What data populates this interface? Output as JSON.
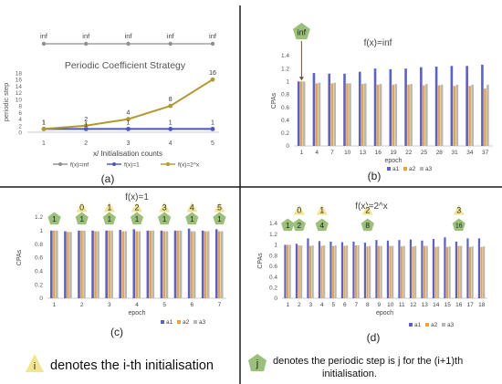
{
  "colors": {
    "inf": "#8f8f8f",
    "one": "#4a55c8",
    "pow": "#b19a2b",
    "a1": "#5b5fd4",
    "a2": "#e8a53a",
    "a3": "#b7b7b7",
    "hex": "#9ac07a",
    "tri": "#f2e58d",
    "axis": "#888888",
    "divider": "#1a1a1a"
  },
  "panels": {
    "a": {
      "letter": "(a)"
    },
    "b": {
      "letter": "(b)"
    },
    "c": {
      "letter": "(c)"
    },
    "d": {
      "letter": "(d)"
    }
  },
  "legend_bottom": {
    "tri_symbol": "i",
    "tri_text": "denotes the i-th initialisation",
    "hex_symbol": "j",
    "hex_text_line1": "denotes the periodic step is j for the (i+1)th",
    "hex_text_line2": "initialisation."
  },
  "chart_data": [
    {
      "id": "a",
      "type": "line",
      "title": "Periodic Coefficient Strategy",
      "xlabel": "x/ Initialisation counts",
      "ylabel": "periodic step",
      "categories": [
        1,
        2,
        3,
        4,
        5
      ],
      "ylim": [
        0,
        18
      ],
      "yticks": [
        0,
        2,
        4,
        6,
        8,
        10,
        12,
        14,
        16,
        18
      ],
      "inf_row_labels": [
        "inf",
        "inf",
        "inf",
        "inf",
        "inf"
      ],
      "series": [
        {
          "name": "f(x)=inf",
          "values": [
            null,
            null,
            null,
            null,
            null
          ],
          "color_key": "inf"
        },
        {
          "name": "f(x)=1",
          "values": [
            1,
            1,
            1,
            1,
            1
          ],
          "labels": [
            "1",
            "1",
            "1",
            "1",
            "1"
          ],
          "color_key": "one"
        },
        {
          "name": "f(x)=2^x",
          "values": [
            1,
            2,
            4,
            8,
            16
          ],
          "labels": [
            "1",
            "2",
            "4",
            "8",
            "16"
          ],
          "color_key": "pow"
        }
      ],
      "legend": [
        "f(x)=inf",
        "f(x)=1",
        "f(x)=2^x"
      ]
    },
    {
      "id": "b",
      "type": "bar",
      "title": "f(x)=inf",
      "xlabel": "epoch",
      "ylabel": "CPAs",
      "ylim": [
        0,
        1.4
      ],
      "yticks": [
        "0",
        "0.2",
        "0.4",
        "0.6",
        "0.8",
        "1",
        "1.2",
        "1.4"
      ],
      "categories": [
        "1",
        "4",
        "7",
        "10",
        "13",
        "16",
        "19",
        "22",
        "25",
        "28",
        "31",
        "34",
        "37"
      ],
      "series": [
        {
          "name": "a1",
          "values": [
            1.0,
            1.13,
            1.12,
            1.12,
            1.15,
            1.2,
            1.19,
            1.2,
            1.22,
            1.23,
            1.24,
            1.24,
            1.26
          ]
        },
        {
          "name": "a2",
          "values": [
            1.0,
            0.97,
            0.97,
            0.97,
            0.96,
            0.95,
            0.95,
            0.95,
            0.94,
            0.94,
            0.93,
            0.93,
            0.89
          ]
        },
        {
          "name": "a3",
          "values": [
            1.0,
            0.98,
            0.98,
            0.97,
            0.97,
            0.96,
            0.96,
            0.96,
            0.96,
            0.95,
            0.95,
            0.95,
            0.95
          ]
        }
      ],
      "legend": [
        "a1",
        "a2",
        "a3"
      ],
      "annotations": [
        {
          "category_index": 0,
          "text": "inf"
        }
      ]
    },
    {
      "id": "c",
      "type": "bar",
      "title": "f(x)=1",
      "xlabel": "epoch",
      "ylabel": "CPAs",
      "ylim": [
        0,
        1.2
      ],
      "yticks": [
        "0",
        "0.2",
        "0.4",
        "0.6",
        "0.8",
        "1",
        "1.2"
      ],
      "categories": [
        "1",
        "",
        "2",
        "",
        "3",
        "",
        "4",
        "",
        "5",
        "",
        "6",
        "",
        "7"
      ],
      "series": [
        {
          "name": "a1",
          "values": [
            1.0,
            0.99,
            1.0,
            1.0,
            1.0,
            1.01,
            1.02,
            1.0,
            1.0,
            1.0,
            1.03,
            1.0,
            1.02
          ]
        },
        {
          "name": "a2",
          "values": [
            1.0,
            0.98,
            1.0,
            0.99,
            1.0,
            0.99,
            0.99,
            1.0,
            0.99,
            1.0,
            0.99,
            0.99,
            0.99
          ]
        },
        {
          "name": "a3",
          "values": [
            1.0,
            0.98,
            1.0,
            0.99,
            1.0,
            0.99,
            0.99,
            1.0,
            0.99,
            1.0,
            0.99,
            0.99,
            0.99
          ]
        }
      ],
      "legend": [
        "a1",
        "a2",
        "a3"
      ],
      "annotations": [
        {
          "category_index": 0,
          "tri": "",
          "hex": "1"
        },
        {
          "category_index": 2,
          "tri": "0",
          "hex": "1"
        },
        {
          "category_index": 4,
          "tri": "1",
          "hex": "1"
        },
        {
          "category_index": 6,
          "tri": "2",
          "hex": "1"
        },
        {
          "category_index": 8,
          "tri": "3",
          "hex": "1"
        },
        {
          "category_index": 10,
          "tri": "4",
          "hex": "1"
        },
        {
          "category_index": 12,
          "tri": "5",
          "hex": "1"
        }
      ]
    },
    {
      "id": "d",
      "type": "bar",
      "title": "f(x)=2^x",
      "xlabel": "epoch",
      "ylabel": "CPAs",
      "ylim": [
        0,
        1.4
      ],
      "yticks": [
        "0",
        "0.2",
        "0.4",
        "0.6",
        "0.8",
        "1",
        "1.2",
        "1.4"
      ],
      "categories": [
        "1",
        "2",
        "3",
        "4",
        "5",
        "6",
        "7",
        "8",
        "9",
        "10",
        "11",
        "12",
        "13",
        "14",
        "15",
        "16",
        "17",
        "18"
      ],
      "series": [
        {
          "name": "a1",
          "values": [
            1.0,
            1.02,
            1.12,
            1.07,
            1.06,
            1.05,
            1.06,
            1.04,
            1.09,
            1.08,
            1.09,
            1.1,
            1.08,
            1.11,
            1.14,
            1.06,
            1.12,
            1.12
          ]
        },
        {
          "name": "a2",
          "values": [
            1.0,
            0.99,
            0.98,
            0.98,
            0.98,
            0.98,
            0.99,
            0.97,
            0.98,
            0.98,
            0.97,
            0.97,
            0.98,
            0.96,
            0.96,
            0.98,
            0.96,
            0.96
          ]
        },
        {
          "name": "a3",
          "values": [
            1.0,
            0.99,
            0.99,
            0.99,
            0.99,
            0.99,
            0.99,
            0.98,
            0.98,
            0.98,
            0.98,
            0.98,
            0.98,
            0.97,
            0.97,
            0.98,
            0.97,
            0.97
          ]
        }
      ],
      "legend": [
        "a1",
        "a2",
        "a3"
      ],
      "annotations": [
        {
          "category_index": 0,
          "tri": "",
          "hex": "1"
        },
        {
          "category_index": 1,
          "tri": "0",
          "hex": "2"
        },
        {
          "category_index": 3,
          "tri": "1",
          "hex": "4"
        },
        {
          "category_index": 7,
          "tri": "2",
          "hex": "8"
        },
        {
          "category_index": 15,
          "tri": "3",
          "hex": "16"
        }
      ]
    }
  ]
}
